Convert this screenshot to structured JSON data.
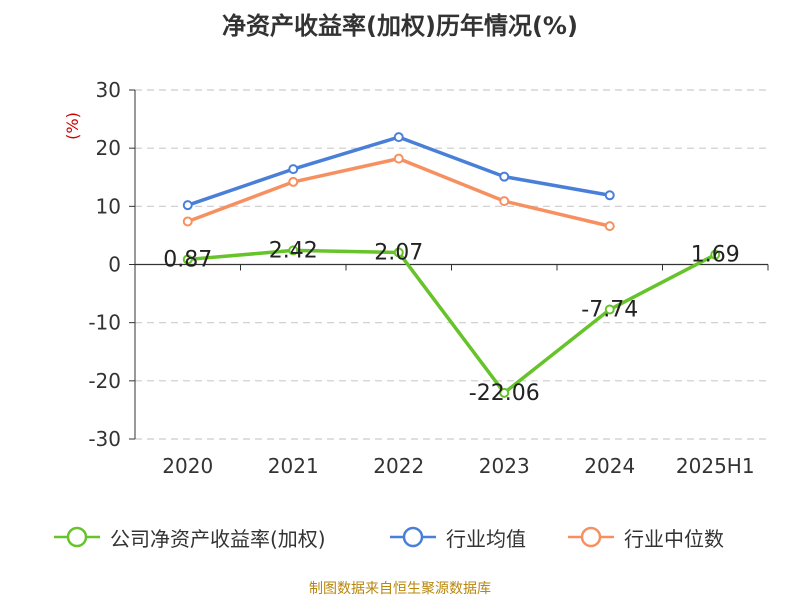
{
  "title": "净资产收益率(加权)历年情况(%)",
  "source": "制图数据来自恒生聚源数据库",
  "colors": {
    "company": "#66c32a",
    "industry_avg": "#4a7fd9",
    "industry_median": "#f79060",
    "axis": "#333333",
    "grid": "#cccccc",
    "unit": "#cc0000"
  },
  "chart_data": {
    "type": "line",
    "title": "净资产收益率(加权)历年情况(%)",
    "ylabel": "(%)",
    "xlabel": "",
    "categories": [
      "2020",
      "2021",
      "2022",
      "2023",
      "2024",
      "2025H1"
    ],
    "ylim": [
      -30,
      30
    ],
    "yticks": [
      30,
      20,
      10,
      0,
      -10,
      -20,
      -30
    ],
    "grid": true,
    "legend_position": "bottom",
    "series": [
      {
        "name": "公司净资产收益率(加权)",
        "values": [
          0.87,
          2.42,
          2.07,
          -22.06,
          -7.74,
          1.69
        ],
        "labels": [
          "0.87",
          "2.42",
          "2.07",
          "-22.06",
          "-7.74",
          "1.69"
        ],
        "color": "#66c32a"
      },
      {
        "name": "行业均值",
        "values": [
          10.2,
          16.4,
          21.9,
          15.1,
          11.9,
          null
        ],
        "color": "#4a7fd9"
      },
      {
        "name": "行业中位数",
        "values": [
          7.4,
          14.2,
          18.2,
          10.9,
          6.6,
          null
        ],
        "color": "#f79060"
      }
    ]
  }
}
